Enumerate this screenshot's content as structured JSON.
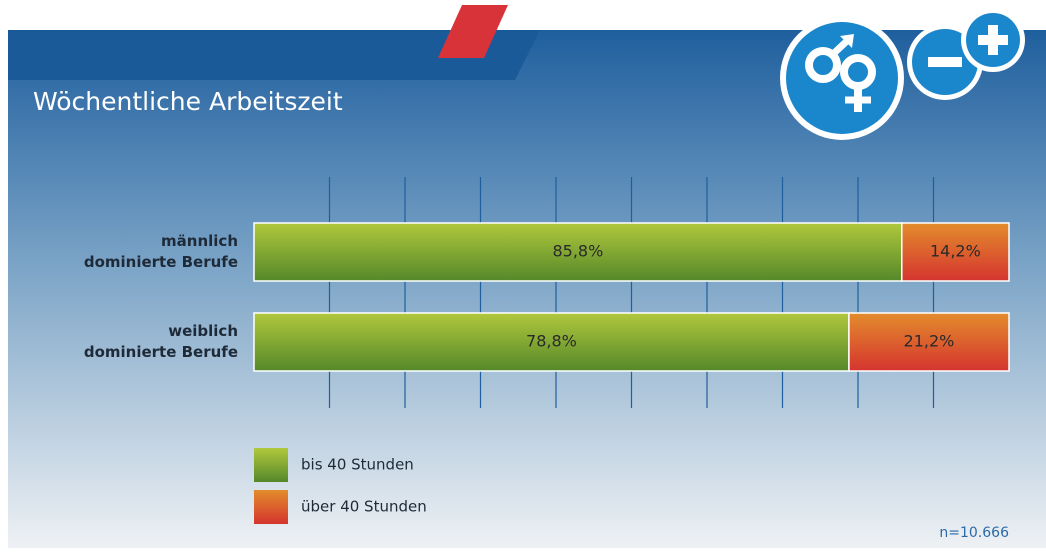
{
  "chart_data": {
    "type": "stacked-bar-horizontal",
    "title": "Wöchentliche Arbeitszeit",
    "categories": [
      "männlich\ndominierte Berufe",
      "weiblich\ndominierte Berufe"
    ],
    "series": [
      {
        "name": "bis 40 Stunden",
        "color": "#7fa832",
        "values": [
          85.8,
          78.8
        ],
        "value_labels": [
          "85,8%",
          "78,8%"
        ]
      },
      {
        "name": "über 40 Stunden",
        "color": "#dc5a2c",
        "values": [
          14.2,
          21.2
        ],
        "value_labels": [
          "14,2%",
          "21,2%"
        ]
      }
    ],
    "xlim": [
      0,
      100
    ],
    "xticks": [
      10,
      20,
      30,
      40,
      50,
      60,
      70,
      80,
      90
    ],
    "grid": true,
    "annotation": "n=10.666"
  }
}
